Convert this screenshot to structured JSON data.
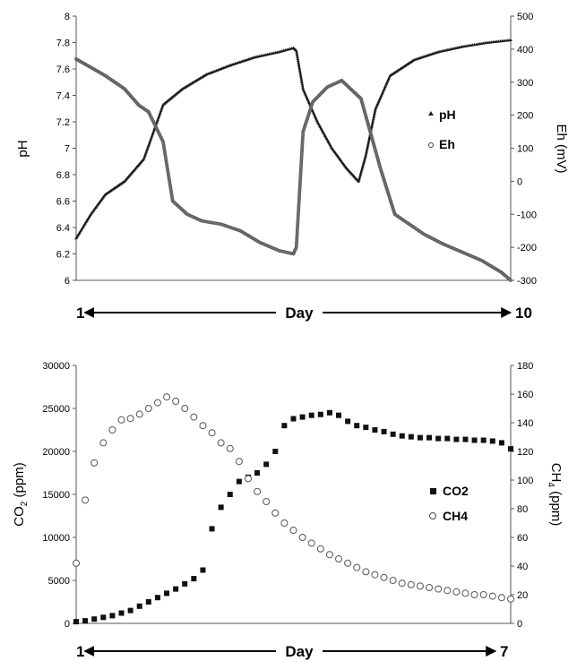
{
  "chart_data": [
    {
      "type": "scatter",
      "ylabel": "pH",
      "y2label": "Eh (mV)",
      "ylim": [
        6,
        8
      ],
      "y2lim": [
        -300,
        500
      ],
      "xlim": [
        1,
        10
      ],
      "yticks": [
        "6",
        "6.2",
        "6.4",
        "6.6",
        "6.8",
        "7",
        "7.2",
        "7.4",
        "7.6",
        "7.8",
        "8"
      ],
      "y2ticks": [
        "-300",
        "-200",
        "-100",
        "0",
        "100",
        "200",
        "300",
        "400",
        "500"
      ],
      "legend_position": "right",
      "series": [
        {
          "name": "pH",
          "axis": "left",
          "marker": "triangle",
          "x": [
            1.0,
            1.3,
            1.6,
            2.0,
            2.4,
            2.8,
            3.2,
            3.7,
            4.2,
            4.7,
            5.2,
            5.5,
            5.56,
            5.7,
            6.0,
            6.3,
            6.6,
            6.85,
            7.0,
            7.2,
            7.5,
            8.0,
            8.5,
            9.0,
            9.5,
            10.0
          ],
          "y": [
            6.32,
            6.5,
            6.65,
            6.75,
            6.92,
            7.33,
            7.45,
            7.56,
            7.63,
            7.69,
            7.73,
            7.76,
            7.74,
            7.45,
            7.2,
            7.0,
            6.85,
            6.75,
            6.95,
            7.3,
            7.55,
            7.67,
            7.73,
            7.77,
            7.8,
            7.82
          ]
        },
        {
          "name": "Eh",
          "axis": "right",
          "marker": "circle",
          "x": [
            1.0,
            1.3,
            1.6,
            2.0,
            2.3,
            2.5,
            2.8,
            3.0,
            3.3,
            3.6,
            4.0,
            4.4,
            4.8,
            5.2,
            5.5,
            5.56,
            5.7,
            5.9,
            6.2,
            6.5,
            6.9,
            7.3,
            7.6,
            7.9,
            8.2,
            8.6,
            9.0,
            9.4,
            9.8,
            10.0
          ],
          "y": [
            370,
            345,
            320,
            280,
            230,
            210,
            120,
            -60,
            -100,
            -120,
            -130,
            -150,
            -185,
            -210,
            -220,
            -200,
            150,
            240,
            285,
            305,
            250,
            40,
            -100,
            -130,
            -160,
            -190,
            -215,
            -240,
            -275,
            -300
          ]
        }
      ],
      "x_axis_arrow": {
        "start_label": "1",
        "label": "Day",
        "end_label": "10"
      }
    },
    {
      "type": "scatter",
      "ylabel": "CO2 (ppm)",
      "y2label": "CH4 (ppm)",
      "ylim": [
        0,
        30000
      ],
      "y2lim": [
        0,
        180
      ],
      "xlim": [
        1,
        7
      ],
      "yticks": [
        "0",
        "5000",
        "10000",
        "15000",
        "20000",
        "25000",
        "30000"
      ],
      "y2ticks": [
        "0",
        "20",
        "40",
        "60",
        "80",
        "100",
        "120",
        "140",
        "160",
        "180"
      ],
      "legend_position": "right",
      "series": [
        {
          "name": "CO2",
          "axis": "left",
          "marker": "square",
          "x": [
            1.0,
            1.125,
            1.25,
            1.375,
            1.5,
            1.625,
            1.75,
            1.875,
            2.0,
            2.125,
            2.25,
            2.375,
            2.5,
            2.625,
            2.75,
            2.875,
            3.0,
            3.125,
            3.25,
            3.375,
            3.5,
            3.625,
            3.75,
            3.875,
            4.0,
            4.125,
            4.25,
            4.375,
            4.5,
            4.625,
            4.75,
            4.875,
            5.0,
            5.125,
            5.25,
            5.375,
            5.5,
            5.625,
            5.75,
            5.875,
            6.0,
            6.125,
            6.25,
            6.375,
            6.5,
            6.625,
            6.75,
            6.875,
            7.0
          ],
          "y": [
            200,
            300,
            500,
            700,
            900,
            1200,
            1500,
            2000,
            2500,
            3000,
            3500,
            4000,
            4600,
            5200,
            6200,
            11000,
            13500,
            15000,
            16500,
            17000,
            17500,
            18500,
            20000,
            23000,
            23800,
            24000,
            24200,
            24300,
            24500,
            24200,
            23500,
            23000,
            22800,
            22500,
            22300,
            22000,
            21800,
            21700,
            21600,
            21600,
            21500,
            21500,
            21400,
            21400,
            21300,
            21300,
            21200,
            21000,
            20300
          ]
        },
        {
          "name": "CH4",
          "axis": "right",
          "marker": "circle",
          "x": [
            1.0,
            1.125,
            1.25,
            1.375,
            1.5,
            1.625,
            1.75,
            1.875,
            2.0,
            2.125,
            2.25,
            2.375,
            2.5,
            2.625,
            2.75,
            2.875,
            3.0,
            3.125,
            3.25,
            3.375,
            3.5,
            3.625,
            3.75,
            3.875,
            4.0,
            4.125,
            4.25,
            4.375,
            4.5,
            4.625,
            4.75,
            4.875,
            5.0,
            5.125,
            5.25,
            5.375,
            5.5,
            5.625,
            5.75,
            5.875,
            6.0,
            6.125,
            6.25,
            6.375,
            6.5,
            6.625,
            6.75,
            6.875,
            7.0
          ],
          "y": [
            42,
            86,
            112,
            126,
            135,
            142,
            143,
            146,
            150,
            154,
            158,
            155,
            150,
            144,
            138,
            133,
            126,
            122,
            113,
            101,
            92,
            85,
            77,
            70,
            65,
            60,
            56,
            52,
            48,
            45,
            42,
            39,
            36,
            34,
            32,
            30,
            28,
            27,
            26,
            25,
            24,
            23,
            22,
            21,
            20,
            20,
            19,
            18,
            17
          ]
        }
      ],
      "x_axis_arrow": {
        "start_label": "1",
        "label": "Day",
        "end_label": "7"
      }
    }
  ]
}
